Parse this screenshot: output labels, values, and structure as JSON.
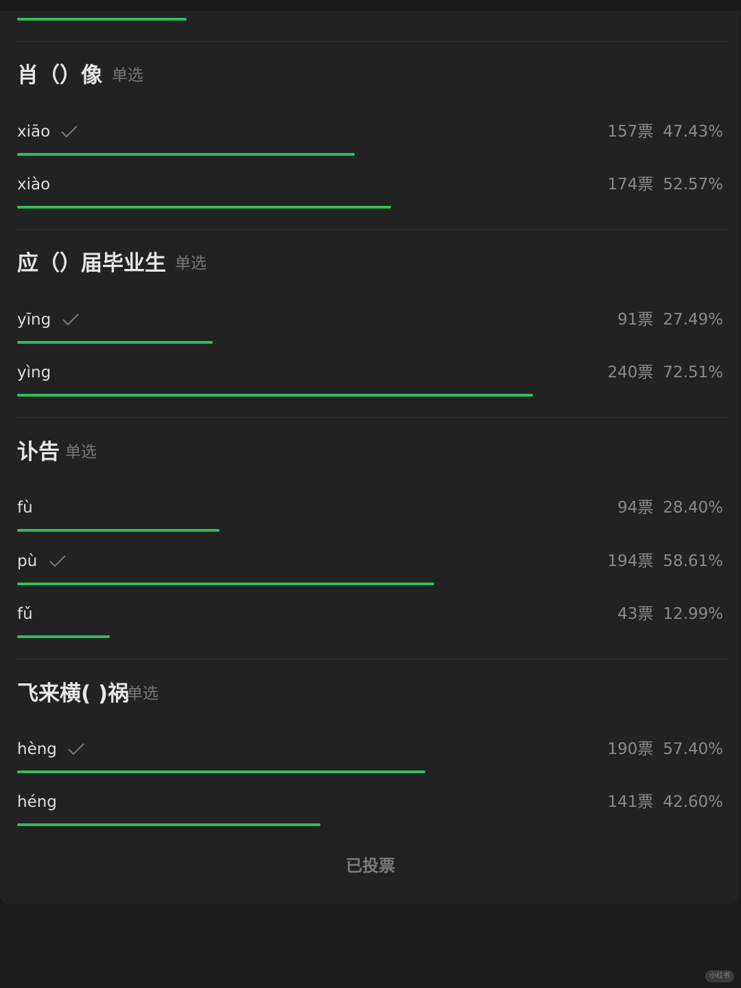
{
  "colors": {
    "background": "#1b1b1b",
    "card": "#222222",
    "bar": "#2fbf5a",
    "text": "#e6e6e6",
    "muted": "#8a8a8a"
  },
  "top_bar_fraction": 0.2383,
  "questions": [
    {
      "title": "肖（）像",
      "kind": "单选",
      "options": [
        {
          "label": "xiāo",
          "correct": true,
          "votes": "157票",
          "percent": "47.43%",
          "fraction": 0.4743
        },
        {
          "label": "xiào",
          "correct": false,
          "votes": "174票",
          "percent": "52.57%",
          "fraction": 0.5257
        }
      ]
    },
    {
      "title": "应（）届毕业生",
      "kind": "单选",
      "options": [
        {
          "label": "yīng",
          "correct": true,
          "votes": "91票",
          "percent": "27.49%",
          "fraction": 0.2749
        },
        {
          "label": "yìng",
          "correct": false,
          "votes": "240票",
          "percent": "72.51%",
          "fraction": 0.7251
        }
      ]
    },
    {
      "title": "讣告",
      "kind": "单选",
      "options": [
        {
          "label": "fù",
          "correct": false,
          "votes": "94票",
          "percent": "28.40%",
          "fraction": 0.284
        },
        {
          "label": "pù",
          "correct": true,
          "votes": "194票",
          "percent": "58.61%",
          "fraction": 0.5861
        },
        {
          "label": "fǔ",
          "correct": false,
          "votes": "43票",
          "percent": "12.99%",
          "fraction": 0.1299
        }
      ]
    },
    {
      "title": "飞来横( )祸",
      "kind": "单选",
      "options": [
        {
          "label": "hèng",
          "correct": true,
          "votes": "190票",
          "percent": "57.40%",
          "fraction": 0.574
        },
        {
          "label": "héng",
          "correct": false,
          "votes": "141票",
          "percent": "42.60%",
          "fraction": 0.426
        }
      ]
    }
  ],
  "footer": {
    "status": "已投票"
  },
  "watermark": "小红书",
  "icons": {
    "check": "checkmark-icon"
  }
}
